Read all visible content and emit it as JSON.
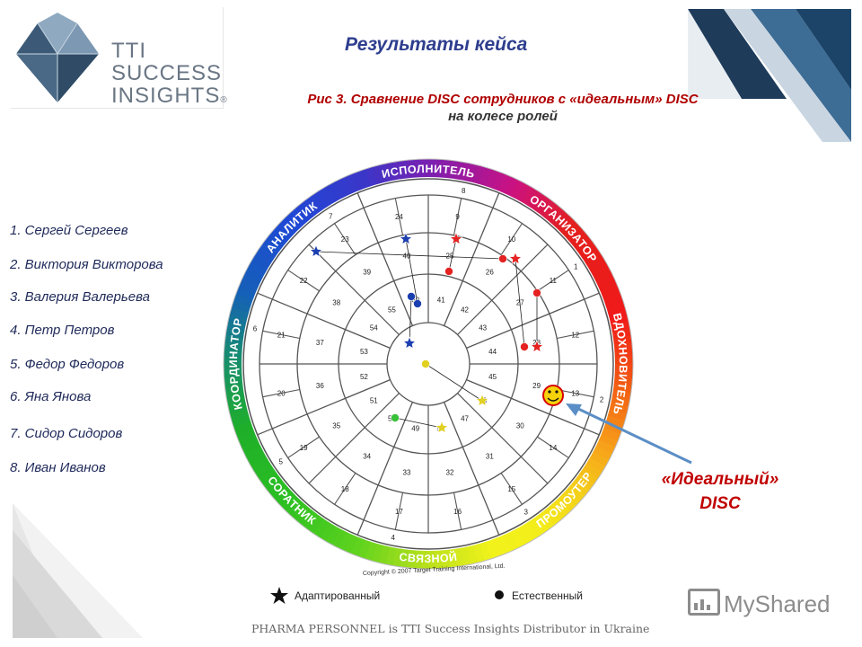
{
  "logo": {
    "line1": "TTI",
    "line2": "SUCCESS",
    "line3": "INSIGHTS",
    "reg": "®"
  },
  "slide_title": "Результаты кейса",
  "caption": {
    "line1": "Рис 3. Сравнение DISC сотрудников с «идеальным» DISC",
    "line2": "на колесе ролей"
  },
  "people": [
    "1. Сергей Сергеев",
    "2. Виктория Викторова",
    "3. Валерия Валерьева",
    "4. Петр Петров",
    "5. Федор Федоров",
    "6. Яна Янова",
    "7. Сидор Сидоров",
    "8. Иван Иванов"
  ],
  "wheel": {
    "roles": [
      "ИСПОЛНИТЕЛЬ",
      "ОРГАНИЗАТОР",
      "ВДОХНОВИТЕЛЬ",
      "ПРОМОУТЕР",
      "СВЯЗНОЙ",
      "СОРАТНИК",
      "КООРДИНАТОР",
      "АНАЛИТИК"
    ],
    "copyright": "Copyright © 2007 Target Training International, Ltd."
  },
  "legend": {
    "adapted": "Адаптированный",
    "natural": "Естественный"
  },
  "ideal_label": {
    "line1": "«Идеальный»",
    "line2": "DISC"
  },
  "footer": "PHARMA PERSONNEL is TTI Success Insights Distributor in Ukraine",
  "watermark": "MyShared",
  "colors": {
    "title": "#2e3e8e",
    "caption": "#b00000",
    "ideal_text": "#c00000",
    "arrow": "#5b8ec6"
  }
}
